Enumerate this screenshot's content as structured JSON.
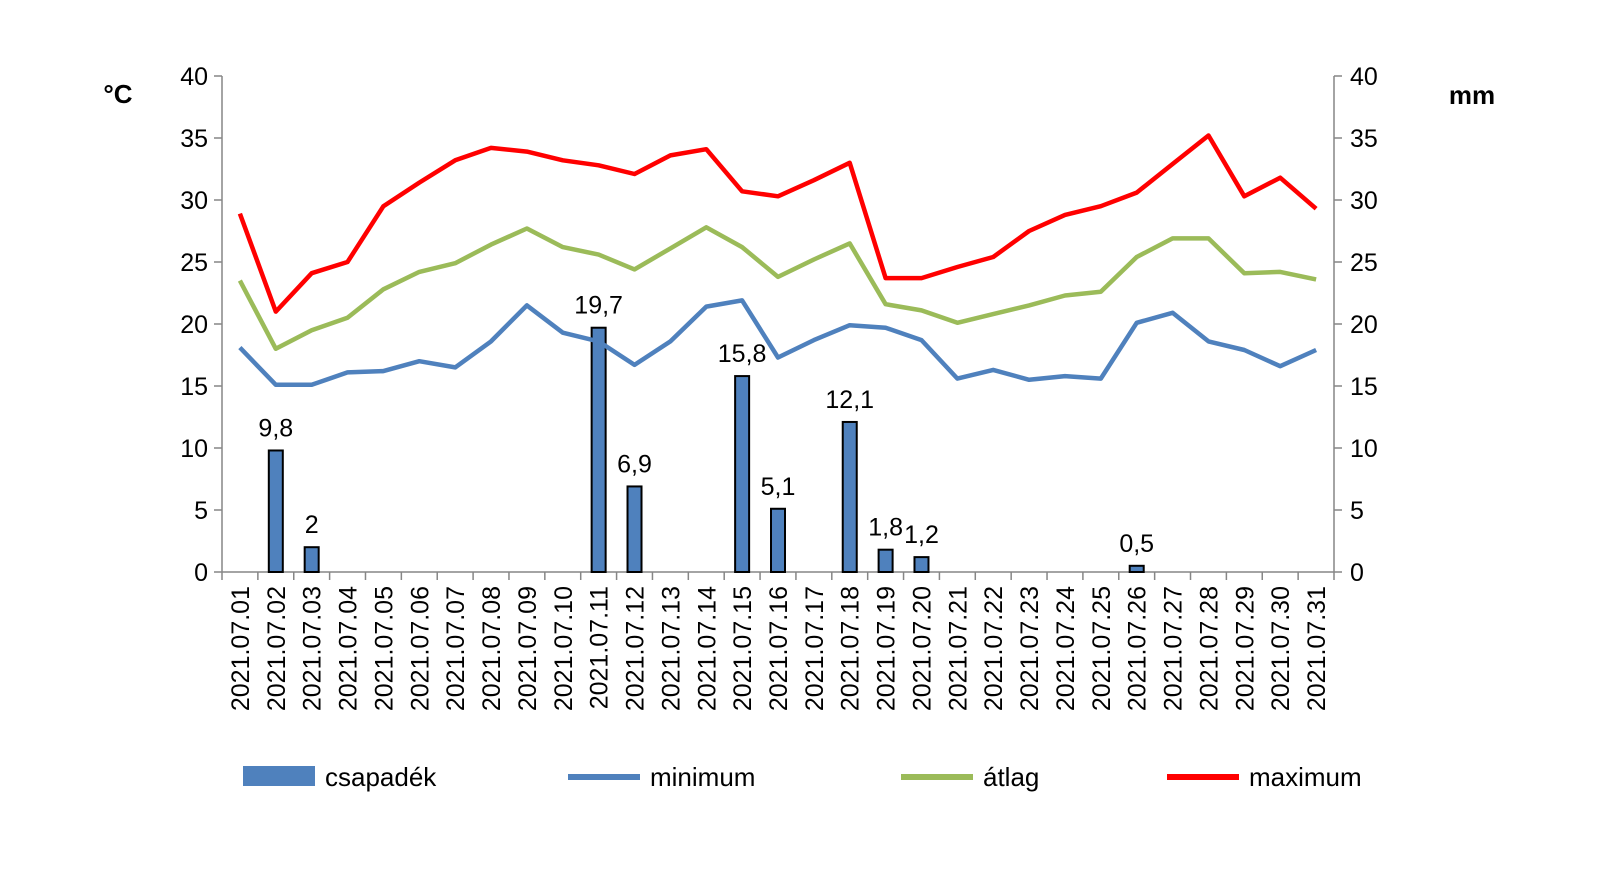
{
  "chart_data": {
    "type": "bar+line",
    "title": "",
    "y_left_label": "°C",
    "y_right_label": "mm",
    "ylim_left": [
      0,
      40
    ],
    "ylim_right": [
      0,
      40
    ],
    "y_ticks": [
      0,
      5,
      10,
      15,
      20,
      25,
      30,
      35,
      40
    ],
    "categories": [
      "2021.07.01",
      "2021.07.02",
      "2021.07.03",
      "2021.07.04",
      "2021.07.05",
      "2021.07.06",
      "2021.07.07",
      "2021.07.08",
      "2021.07.09",
      "2021.07.10",
      "2021.07.11",
      "2021.07.12",
      "2021.07.13",
      "2021.07.14",
      "2021.07.15",
      "2021.07.16",
      "2021.07.17",
      "2021.07.18",
      "2021.07.19",
      "2021.07.20",
      "2021.07.21",
      "2021.07.22",
      "2021.07.23",
      "2021.07.24",
      "2021.07.25",
      "2021.07.26",
      "2021.07.27",
      "2021.07.28",
      "2021.07.29",
      "2021.07.30",
      "2021.07.31"
    ],
    "bar_series": {
      "name": "csapadék",
      "axis": "right",
      "color": "#4F81BD",
      "values": [
        null,
        9.8,
        2,
        null,
        null,
        null,
        null,
        null,
        null,
        null,
        19.7,
        6.9,
        null,
        null,
        15.8,
        5.1,
        null,
        12.1,
        1.8,
        1.2,
        null,
        null,
        null,
        null,
        null,
        0.5,
        null,
        null,
        null,
        null,
        null
      ],
      "labels": [
        null,
        "9,8",
        "2",
        null,
        null,
        null,
        null,
        null,
        null,
        null,
        "19,7",
        "6,9",
        null,
        null,
        "15,8",
        "5,1",
        null,
        "12,1",
        "1,8",
        "1,2",
        null,
        null,
        null,
        null,
        null,
        "0,5",
        null,
        null,
        null,
        null,
        null
      ]
    },
    "line_series": [
      {
        "name": "minimum",
        "color": "#4F81BD",
        "values": [
          18.1,
          15.1,
          15.1,
          16.1,
          16.2,
          17.0,
          16.5,
          18.6,
          21.5,
          19.3,
          18.6,
          16.7,
          18.6,
          21.4,
          21.9,
          17.3,
          18.7,
          19.9,
          19.7,
          18.7,
          15.6,
          16.3,
          15.5,
          15.8,
          15.6,
          20.1,
          20.9,
          18.6,
          17.9,
          16.6,
          17.9
        ]
      },
      {
        "name": "átlag",
        "color": "#9BBB59",
        "values": [
          23.5,
          18.0,
          19.5,
          20.5,
          22.8,
          24.2,
          24.9,
          26.4,
          27.7,
          26.2,
          25.6,
          24.4,
          26.1,
          27.8,
          26.2,
          23.8,
          25.2,
          26.5,
          21.6,
          21.1,
          20.1,
          20.8,
          21.5,
          22.3,
          22.6,
          25.4,
          26.9,
          26.9,
          24.1,
          24.2,
          23.6
        ]
      },
      {
        "name": "maximum",
        "color": "#FF0000",
        "values": [
          28.9,
          21.0,
          24.1,
          25.0,
          29.5,
          31.4,
          33.2,
          34.2,
          33.9,
          33.2,
          32.8,
          32.1,
          33.6,
          34.1,
          30.7,
          30.3,
          31.6,
          33.0,
          23.7,
          23.7,
          24.6,
          25.4,
          27.5,
          28.8,
          29.5,
          30.6,
          32.9,
          35.2,
          30.3,
          31.8,
          29.3
        ]
      }
    ],
    "legend": {
      "placement": "bottom",
      "items": [
        {
          "label": "csapadék",
          "kind": "bar",
          "color": "#4F81BD"
        },
        {
          "label": "minimum",
          "kind": "line",
          "color": "#4F81BD"
        },
        {
          "label": "átlag",
          "kind": "line",
          "color": "#9BBB59"
        },
        {
          "label": "maximum",
          "kind": "line",
          "color": "#FF0000"
        }
      ]
    },
    "grid": false
  }
}
